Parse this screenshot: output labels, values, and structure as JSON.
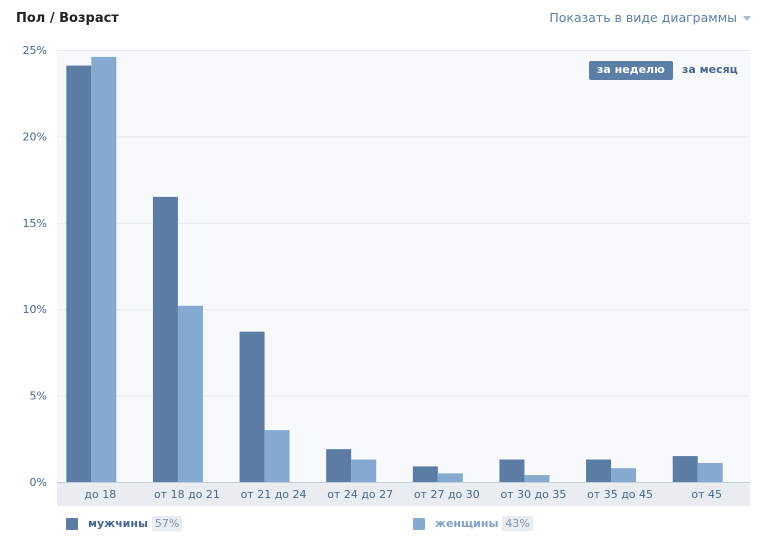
{
  "header": {
    "title": "Пол / Возраст",
    "view_toggle_label": "Показать в виде диаграммы"
  },
  "period_tabs": [
    {
      "label": "за неделю",
      "active": true
    },
    {
      "label": "за месяц",
      "active": false
    }
  ],
  "legend": [
    {
      "label": "мужчины",
      "percent": "57%",
      "color": "#5b7da4"
    },
    {
      "label": "женщины",
      "percent": "43%",
      "color": "#84abcf"
    }
  ],
  "chart_data": {
    "type": "bar",
    "categories": [
      "до 18",
      "от 18 до 21",
      "от 21 до 24",
      "от 24 до 27",
      "от 27 до 30",
      "от 30 до 35",
      "от 35 до 45",
      "от 45"
    ],
    "series": [
      {
        "name": "мужчины",
        "values": [
          24.1,
          16.5,
          8.7,
          1.9,
          0.9,
          1.3,
          1.3,
          1.5
        ],
        "color": "#5b7da4"
      },
      {
        "name": "женщины",
        "values": [
          24.6,
          10.2,
          3.0,
          1.3,
          0.5,
          0.4,
          0.8,
          1.1
        ],
        "color": "#84abcf"
      }
    ],
    "yticks": [
      "0%",
      "5%",
      "10%",
      "15%",
      "20%",
      "25%"
    ],
    "ylim": [
      0,
      25
    ],
    "grid": true,
    "legend_position": "bottom"
  }
}
